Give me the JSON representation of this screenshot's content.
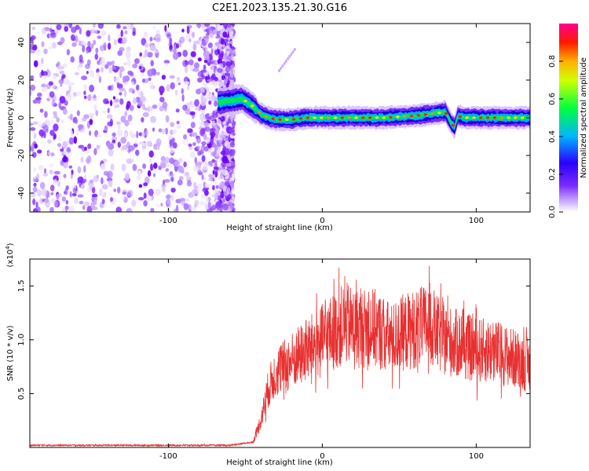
{
  "title": "C2E1.2023.135.21.30.G16",
  "chart_data": [
    {
      "type": "heatmap",
      "title": "C2E1.2023.135.21.30.G16",
      "xlabel": "Height of straight line (km)",
      "ylabel": "Frequency (Hz)",
      "xlim": [
        -190,
        135
      ],
      "ylim": [
        -50,
        50
      ],
      "xticks": [
        -100,
        0,
        100
      ],
      "yticks": [
        -40,
        -20,
        0,
        20,
        40
      ],
      "colorbar": {
        "label": "Normalized spectral amplitude",
        "range": [
          0.0,
          1.0
        ],
        "ticks": [
          "0.0",
          "0.2",
          "0.4",
          "0.6",
          "0.8"
        ],
        "colors": [
          "#ffffff",
          "#9d4dff",
          "#3300ff",
          "#00c8ff",
          "#00ff00",
          "#ffff00",
          "#ff0000",
          "#ff0080"
        ]
      },
      "noise_region_km": [
        -190,
        -58
      ],
      "ridge": {
        "x": [
          -68,
          -60,
          -52,
          -45,
          -40,
          -35,
          -30,
          -20,
          -10,
          0,
          20,
          40,
          60,
          70,
          80,
          84,
          86,
          88,
          92,
          100,
          120,
          135
        ],
        "y": [
          8,
          9,
          10,
          6,
          2,
          0,
          -1,
          -1,
          0,
          0,
          0,
          0,
          1,
          2,
          3,
          -3,
          -5,
          1,
          0,
          0,
          0,
          0
        ]
      },
      "grid": false
    },
    {
      "type": "line",
      "xlabel": "Height of straight line (km)",
      "ylabel": "SNR (10 * v/v)",
      "yscale_label": "(x10",
      "yscale_exp": "4",
      "xlim": [
        -190,
        135
      ],
      "ylim": [
        0,
        1.75
      ],
      "xticks": [
        -100,
        0,
        100
      ],
      "yticks": [
        "0.5",
        "1.0",
        "1.5"
      ],
      "color": "#e83030",
      "series": [
        {
          "x": [
            -190,
            -150,
            -100,
            -60,
            -45,
            -40,
            -35,
            -30,
            -25,
            -20,
            -15,
            -10,
            -5,
            0,
            5,
            10,
            15,
            20,
            25,
            30,
            35,
            40,
            45,
            50,
            55,
            60,
            65,
            70,
            75,
            80,
            90,
            100,
            110,
            120,
            130,
            135
          ],
          "values": [
            0.02,
            0.02,
            0.02,
            0.02,
            0.05,
            0.25,
            0.55,
            0.7,
            0.75,
            0.8,
            0.85,
            0.9,
            0.95,
            1.0,
            1.05,
            1.1,
            1.15,
            1.12,
            1.1,
            1.12,
            1.1,
            1.05,
            1.0,
            1.05,
            1.08,
            1.1,
            1.12,
            1.15,
            1.05,
            1.0,
            0.95,
            0.9,
            0.9,
            0.85,
            0.8,
            0.75
          ]
        }
      ],
      "grid": false
    }
  ]
}
